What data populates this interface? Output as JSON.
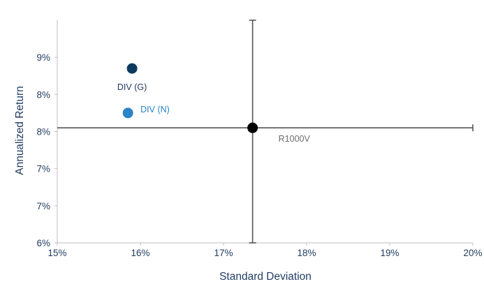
{
  "chart_data": {
    "type": "scatter",
    "xlabel": "Standard Deviation",
    "ylabel": "Annualized Return",
    "xlim": [
      15,
      20
    ],
    "ylim": [
      6,
      9
    ],
    "x_ticks": [
      {
        "value": 15,
        "label": "15%"
      },
      {
        "value": 16,
        "label": "16%"
      },
      {
        "value": 17,
        "label": "17%"
      },
      {
        "value": 18,
        "label": "18%"
      },
      {
        "value": 19,
        "label": "19%"
      },
      {
        "value": 20,
        "label": "20%"
      }
    ],
    "y_ticks": [
      {
        "value": 6,
        "label": "6%"
      },
      {
        "value": 6.5,
        "label": "7%"
      },
      {
        "value": 7,
        "label": "7%"
      },
      {
        "value": 7.5,
        "label": "8%"
      },
      {
        "value": 8,
        "label": "8%"
      },
      {
        "value": 8.5,
        "label": "9%"
      }
    ],
    "points": [
      {
        "label": "DIV (G)",
        "x": 15.9,
        "y": 8.35,
        "color": "#0b3a5e",
        "label_color": "#1f3a5f",
        "label_pos": "below"
      },
      {
        "label": "DIV (N)",
        "x": 15.85,
        "y": 7.75,
        "color": "#2a84c6",
        "label_color": "#2a84c6",
        "label_pos": "right"
      },
      {
        "label": "R1000V",
        "x": 17.35,
        "y": 7.55,
        "color": "#000000",
        "label_color": "#6b6b6b",
        "label_pos": "below-right"
      }
    ],
    "crosshair": {
      "x": 17.35,
      "y": 7.55,
      "color": "#555555"
    },
    "grid": false
  }
}
